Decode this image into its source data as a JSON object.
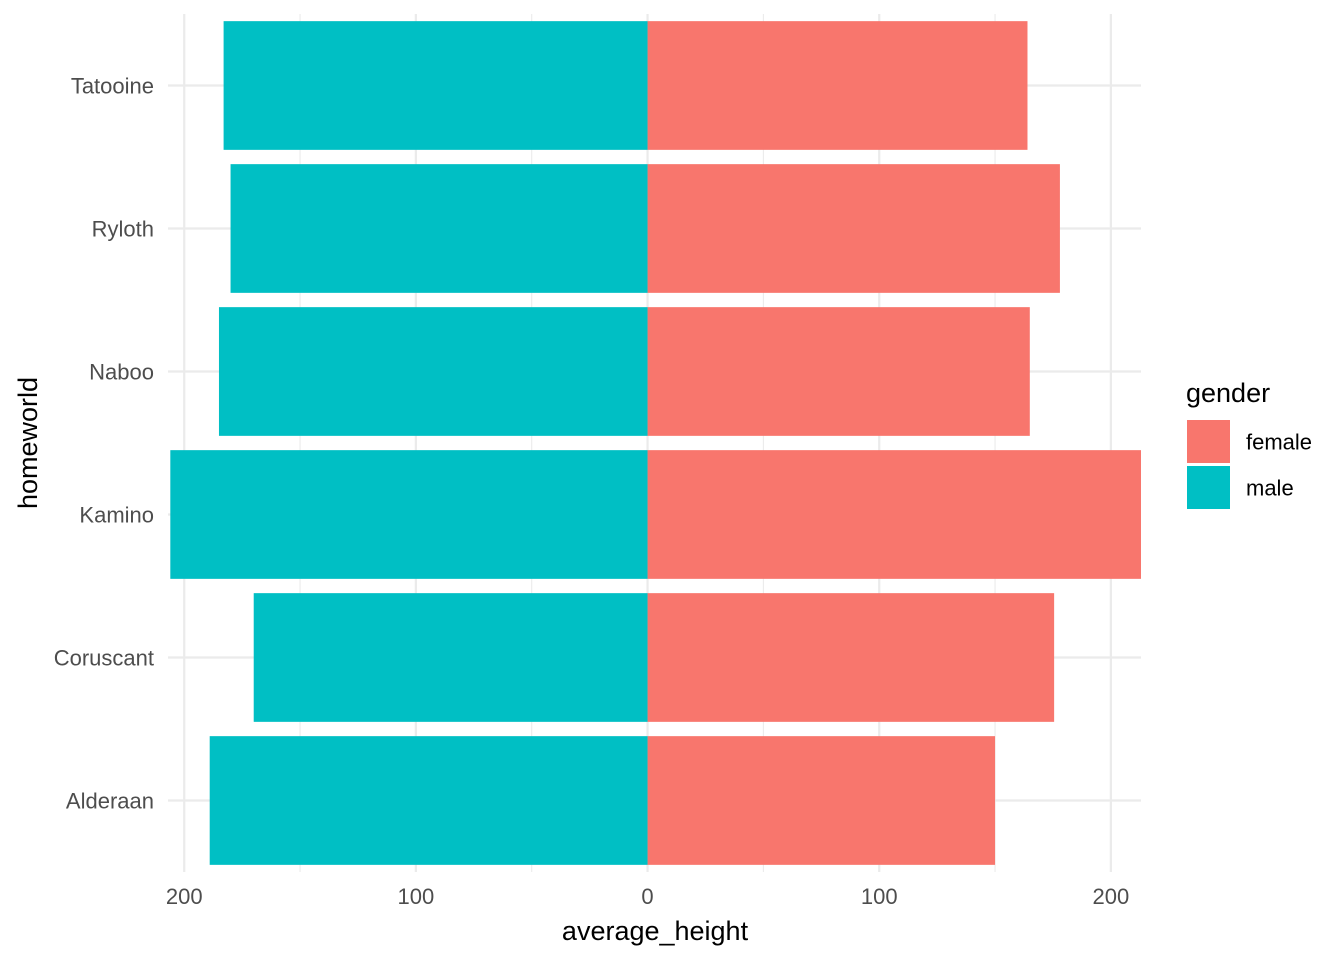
{
  "chart_data": {
    "type": "bar",
    "orientation": "horizontal",
    "diverging": true,
    "title": "",
    "xlabel": "average_height",
    "ylabel": "homeworld",
    "categories": [
      "Alderaan",
      "Coruscant",
      "Kamino",
      "Naboo",
      "Ryloth",
      "Tatooine"
    ],
    "series": [
      {
        "name": "female",
        "color": "#F8766D",
        "direction": "right",
        "values": [
          150,
          175.5,
          213,
          165,
          178,
          164
        ]
      },
      {
        "name": "male",
        "color": "#00BFC4",
        "direction": "left",
        "values": [
          189,
          170,
          206,
          185,
          180,
          183
        ]
      }
    ],
    "xlim": [
      -207,
      213
    ],
    "x_ticks": [
      {
        "value": -200,
        "label": "200"
      },
      {
        "value": -100,
        "label": "100"
      },
      {
        "value": 0,
        "label": "0"
      },
      {
        "value": 100,
        "label": "100"
      },
      {
        "value": 200,
        "label": "200"
      }
    ],
    "x_minor_ticks": [
      -150,
      -50,
      50,
      150
    ],
    "grid": true,
    "legend": {
      "title": "gender",
      "placement": "right",
      "entries": [
        "female",
        "male"
      ]
    },
    "background": "#FFFFFF"
  }
}
